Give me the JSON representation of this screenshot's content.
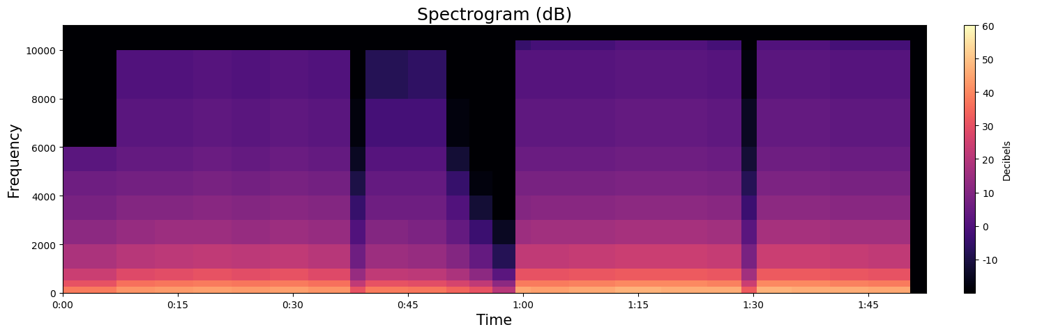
{
  "chart_data": {
    "type": "heatmap",
    "title": "Spectrogram (dB)",
    "x_label": "Time",
    "y_label": "Frequency",
    "xlim": [
      0,
      112.6
    ],
    "ylim": [
      0,
      11025
    ],
    "xticks": [
      {
        "value": 0,
        "label": "0:00"
      },
      {
        "value": 15,
        "label": "0:15"
      },
      {
        "value": 30,
        "label": "0:30"
      },
      {
        "value": 45,
        "label": "0:45"
      },
      {
        "value": 60,
        "label": "1:00"
      },
      {
        "value": 75,
        "label": "1:15"
      },
      {
        "value": 90,
        "label": "1:30"
      },
      {
        "value": 105,
        "label": "1:45"
      }
    ],
    "yticks": [
      0,
      2000,
      4000,
      6000,
      8000,
      10000
    ],
    "time_edges": [
      0,
      7,
      12,
      17,
      22,
      27,
      32,
      37.5,
      39.5,
      45,
      50,
      53,
      56,
      59,
      61,
      66,
      72,
      78,
      84,
      88.5,
      90.5,
      95,
      100,
      105,
      110.5,
      112.6
    ],
    "frequency_edges": [
      0,
      250,
      500,
      1000,
      2000,
      3000,
      4000,
      5000,
      6000,
      8000,
      10000,
      10400,
      11025
    ],
    "cells": [
      [
        38,
        42,
        43,
        44,
        43,
        44,
        42,
        30,
        38,
        37,
        34,
        30,
        20,
        45,
        44,
        45,
        47,
        46,
        46,
        32,
        47,
        46,
        46,
        45,
        -20
      ],
      [
        30,
        36,
        37,
        38,
        37,
        38,
        36,
        22,
        30,
        29,
        26,
        22,
        12,
        38,
        38,
        39,
        40,
        40,
        39,
        24,
        40,
        40,
        39,
        38,
        -20
      ],
      [
        24,
        28,
        29,
        30,
        29,
        30,
        28,
        14,
        22,
        21,
        18,
        12,
        2,
        30,
        30,
        31,
        32,
        32,
        31,
        16,
        32,
        32,
        31,
        30,
        -20
      ],
      [
        18,
        20,
        21,
        22,
        21,
        22,
        20,
        6,
        15,
        14,
        10,
        4,
        -8,
        22,
        22,
        23,
        24,
        24,
        23,
        8,
        24,
        24,
        23,
        22,
        -20
      ],
      [
        12,
        14,
        15,
        15,
        14,
        15,
        14,
        0,
        10,
        9,
        4,
        -4,
        -15,
        15,
        16,
        16,
        17,
        17,
        16,
        2,
        17,
        17,
        16,
        16,
        -20
      ],
      [
        8,
        10,
        10,
        11,
        10,
        11,
        10,
        -5,
        6,
        6,
        0,
        -12,
        -20,
        10,
        11,
        11,
        12,
        12,
        11,
        -4,
        12,
        12,
        11,
        11,
        -20
      ],
      [
        6,
        7,
        7,
        8,
        7,
        8,
        7,
        -10,
        4,
        4,
        -5,
        -18,
        -20,
        8,
        8,
        8,
        9,
        9,
        8,
        -8,
        9,
        9,
        8,
        8,
        -20
      ],
      [
        2,
        4,
        4,
        5,
        4,
        5,
        4,
        -15,
        1,
        1,
        -12,
        -20,
        -20,
        5,
        5,
        5,
        6,
        6,
        5,
        -12,
        6,
        6,
        5,
        5,
        -20
      ],
      [
        -20,
        2,
        2,
        3,
        2,
        3,
        2,
        -18,
        -2,
        -2,
        -18,
        -20,
        -20,
        3,
        3,
        3,
        4,
        4,
        3,
        -15,
        4,
        4,
        3,
        3,
        -20
      ],
      [
        -20,
        0,
        0,
        1,
        0,
        1,
        0,
        -20,
        -8,
        -6,
        -20,
        -20,
        -20,
        1,
        1,
        1,
        2,
        2,
        1,
        -18,
        2,
        2,
        1,
        1,
        -20
      ],
      [
        -20,
        -20,
        -20,
        -20,
        -20,
        -20,
        -20,
        -20,
        -20,
        -20,
        -20,
        -20,
        -20,
        -5,
        -2,
        -2,
        0,
        0,
        -2,
        -20,
        0,
        0,
        -2,
        -2,
        -20
      ],
      [
        -20,
        -20,
        -20,
        -20,
        -20,
        -20,
        -20,
        -20,
        -20,
        -20,
        -20,
        -20,
        -20,
        -20,
        -20,
        -20,
        -20,
        -20,
        -20,
        -20,
        -20,
        -20,
        -20,
        -20,
        -20
      ]
    ],
    "colorbar": {
      "label": "Decibels",
      "range": [
        -20,
        60
      ],
      "ticks": [
        -10,
        0,
        10,
        20,
        30,
        40,
        50,
        60
      ]
    }
  }
}
